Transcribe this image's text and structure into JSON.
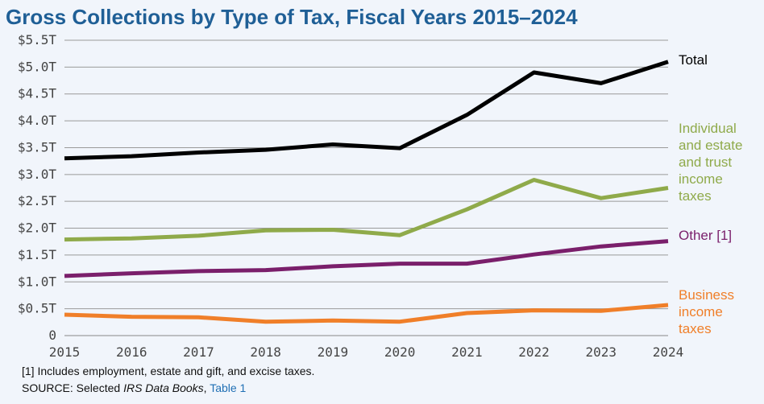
{
  "title": "Gross Collections by Type of Tax, Fiscal Years 2015–2024",
  "footnote": "[1] Includes employment, estate and gift, and excise taxes.",
  "source": {
    "prefix": "SOURCE: Selected ",
    "italic": "IRS Data Books",
    "sep": ", ",
    "link": "Table 1"
  },
  "chart_data": {
    "type": "line",
    "x": [
      2015,
      2016,
      2017,
      2018,
      2019,
      2020,
      2021,
      2022,
      2023,
      2024
    ],
    "ylim": [
      0,
      5.5
    ],
    "y_ticks": [
      {
        "value": 5.5,
        "label": "$5.5T"
      },
      {
        "value": 5.0,
        "label": "$5.0T"
      },
      {
        "value": 4.5,
        "label": "$4.5T"
      },
      {
        "value": 4.0,
        "label": "$4.0T"
      },
      {
        "value": 3.5,
        "label": "$3.5T"
      },
      {
        "value": 3.0,
        "label": "$3.0T"
      },
      {
        "value": 2.5,
        "label": "$2.5T"
      },
      {
        "value": 2.0,
        "label": "$2.0T"
      },
      {
        "value": 1.5,
        "label": "$1.5T"
      },
      {
        "value": 1.0,
        "label": "$1.0T"
      },
      {
        "value": 0.5,
        "label": "$0.5T"
      },
      {
        "value": 0,
        "label": "0"
      }
    ],
    "grid": true,
    "series": [
      {
        "name": "Total",
        "color": "#000000",
        "values": [
          3.3,
          3.34,
          3.41,
          3.46,
          3.56,
          3.49,
          4.11,
          4.9,
          4.7,
          5.1
        ]
      },
      {
        "name": "Individual and estate and trust income taxes",
        "color": "#8faa4a",
        "values": [
          1.79,
          1.81,
          1.86,
          1.96,
          1.97,
          1.87,
          2.35,
          2.9,
          2.56,
          2.75
        ]
      },
      {
        "name": "Other [1]",
        "color": "#7a1f6b",
        "values": [
          1.11,
          1.16,
          1.2,
          1.22,
          1.29,
          1.34,
          1.34,
          1.51,
          1.66,
          1.76
        ]
      },
      {
        "name": "Business income taxes",
        "color": "#f07f29",
        "values": [
          0.39,
          0.35,
          0.34,
          0.26,
          0.28,
          0.26,
          0.42,
          0.47,
          0.46,
          0.57
        ]
      }
    ],
    "end_labels": [
      {
        "series": 0,
        "lines": [
          "Total"
        ]
      },
      {
        "series": 1,
        "lines": [
          "Individual",
          "and estate",
          "and trust",
          "income",
          "taxes"
        ]
      },
      {
        "series": 2,
        "lines": [
          "Other [1]"
        ]
      },
      {
        "series": 3,
        "lines": [
          "Business",
          "income",
          "taxes"
        ]
      }
    ]
  }
}
